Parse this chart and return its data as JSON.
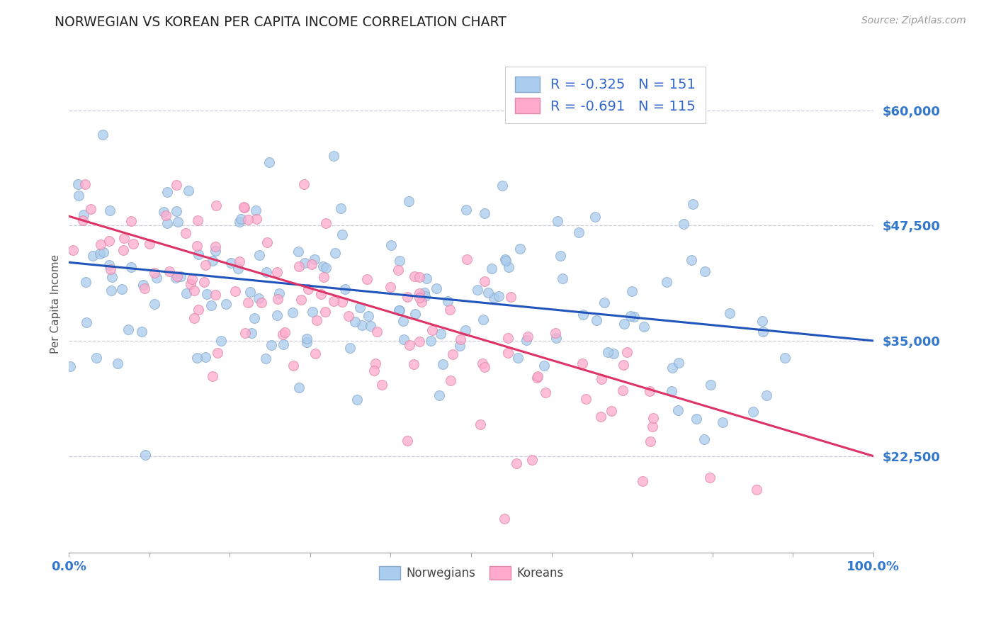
{
  "title": "NORWEGIAN VS KOREAN PER CAPITA INCOME CORRELATION CHART",
  "source": "Source: ZipAtlas.com",
  "ylabel": "Per Capita Income",
  "xlim": [
    0.0,
    1.0
  ],
  "ylim": [
    12000,
    66000
  ],
  "yticks": [
    22500,
    35000,
    47500,
    60000
  ],
  "ytick_labels": [
    "$22,500",
    "$35,000",
    "$47,500",
    "$60,000"
  ],
  "xticks": [
    0.0,
    0.1,
    0.2,
    0.3,
    0.4,
    0.5,
    0.6,
    0.7,
    0.8,
    0.9,
    1.0
  ],
  "xtick_labels": [
    "0.0%",
    "",
    "",
    "",
    "",
    "",
    "",
    "",
    "",
    "",
    "100.0%"
  ],
  "norwegian_color": "#aaccee",
  "norwegian_edge_color": "#88aacc",
  "korean_color": "#ffaacc",
  "korean_edge_color": "#dd88aa",
  "norwegian_line_color": "#2255bb",
  "korean_line_color": "#dd3366",
  "legend_label1": "R = -0.325   N = 151",
  "legend_label2": "R = -0.691   N = 115",
  "norwegian_R": -0.325,
  "norwegian_N": 151,
  "korean_R": -0.691,
  "korean_N": 115,
  "nor_intercept": 43500,
  "nor_slope": -8500,
  "kor_intercept": 48500,
  "kor_slope": -26000,
  "marker_size": 100,
  "marker_alpha": 0.75,
  "background_color": "#ffffff",
  "grid_color": "#ccccdd",
  "title_color": "#222222",
  "axis_label_color": "#555555",
  "tick_label_color": "#3377cc",
  "source_color": "#999999",
  "legend_text_color": "#3366cc",
  "seed": 12345
}
